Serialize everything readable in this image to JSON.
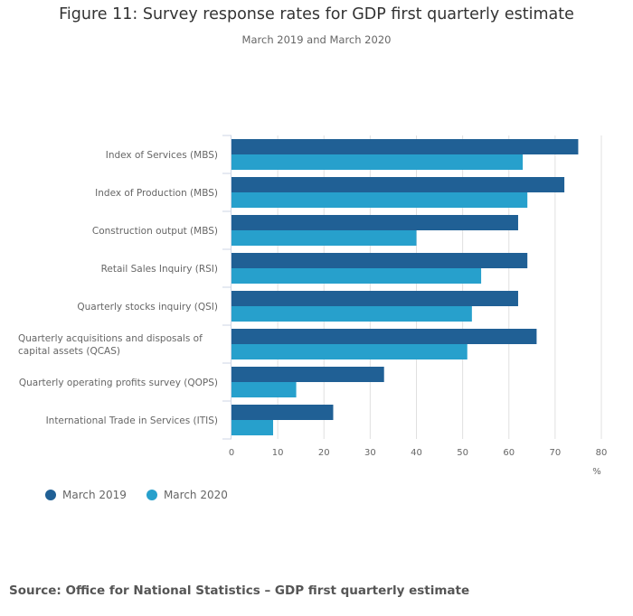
{
  "chart_data": {
    "type": "bar",
    "orientation": "horizontal",
    "title": "Figure 11: Survey response rates for GDP first quarterly estimate",
    "subtitle": "March 2019 and March 2020",
    "categories": [
      [
        "Index of Services (MBS)"
      ],
      [
        "Index of Production (MBS)"
      ],
      [
        "Construction output (MBS)"
      ],
      [
        "Retail Sales Inquiry (RSI)"
      ],
      [
        "Quarterly stocks inquiry (QSI)"
      ],
      [
        "Quarterly acquisitions and disposals of",
        "capital assets (QCAS)"
      ],
      [
        "Quarterly operating profits survey (QOPS)"
      ],
      [
        "International Trade in Services (ITIS)"
      ]
    ],
    "series": [
      {
        "name": "March 2019",
        "color": "#206095",
        "values": [
          75,
          72,
          62,
          64,
          62,
          66,
          33,
          22
        ]
      },
      {
        "name": "March 2020",
        "color": "#27a0cc",
        "values": [
          63,
          64,
          40,
          54,
          52,
          51,
          14,
          9
        ]
      }
    ],
    "xlabel": "%",
    "ylabel": "",
    "xlim": [
      0,
      80
    ],
    "xticks": [
      "0",
      "10",
      "20",
      "30",
      "40",
      "50",
      "60",
      "70",
      "80"
    ],
    "grid": true,
    "legend_position": "bottom-left"
  },
  "source": "Source: Office for National Statistics – GDP first quarterly estimate"
}
